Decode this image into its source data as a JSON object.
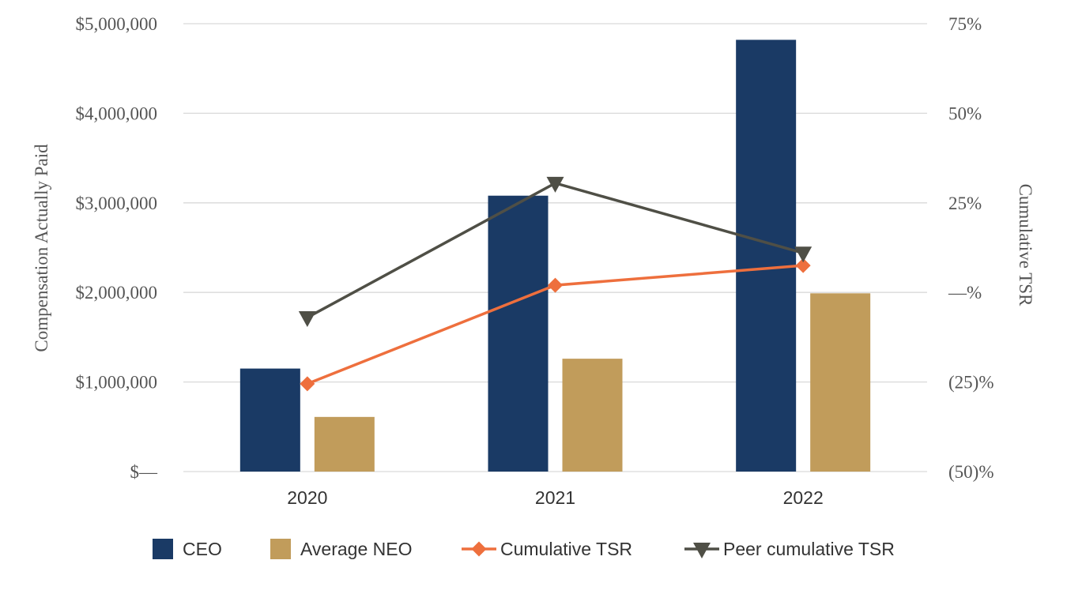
{
  "chart_data": {
    "type": "bar",
    "categories": [
      "2020",
      "2021",
      "2022"
    ],
    "series": [
      {
        "name": "CEO",
        "kind": "bar",
        "axis": "left",
        "color": "#1a3a65",
        "values": [
          1150000,
          3080000,
          4820000
        ]
      },
      {
        "name": "Average NEO",
        "kind": "bar",
        "axis": "left",
        "color": "#c19c5b",
        "values": [
          610000,
          1260000,
          1990000
        ]
      },
      {
        "name": "Cumulative TSR",
        "kind": "line",
        "marker": "diamond",
        "axis": "right",
        "color": "#ee6f3d",
        "values": [
          -25.5,
          2,
          7.5
        ]
      },
      {
        "name": "Peer cumulative TSR",
        "kind": "line",
        "marker": "triangle-down",
        "axis": "right",
        "color": "#4f4f46",
        "values": [
          -7,
          30.5,
          11
        ]
      }
    ],
    "left_axis": {
      "label": "Compensation Actually Paid",
      "ylim": [
        0,
        5000000
      ],
      "ticks": [
        0,
        1000000,
        2000000,
        3000000,
        4000000,
        5000000
      ],
      "tick_labels": [
        "$—",
        "$1,000,000",
        "$2,000,000",
        "$3,000,000",
        "$4,000,000",
        "$5,000,000"
      ]
    },
    "right_axis": {
      "label": "Cumulative TSR",
      "ylim": [
        -50,
        75
      ],
      "ticks": [
        -50,
        -25,
        0,
        25,
        50,
        75
      ],
      "tick_labels": [
        "(50)%",
        "(25)%",
        "—%",
        "25%",
        "50%",
        "75%"
      ]
    },
    "grid": true,
    "legend_position": "bottom"
  }
}
